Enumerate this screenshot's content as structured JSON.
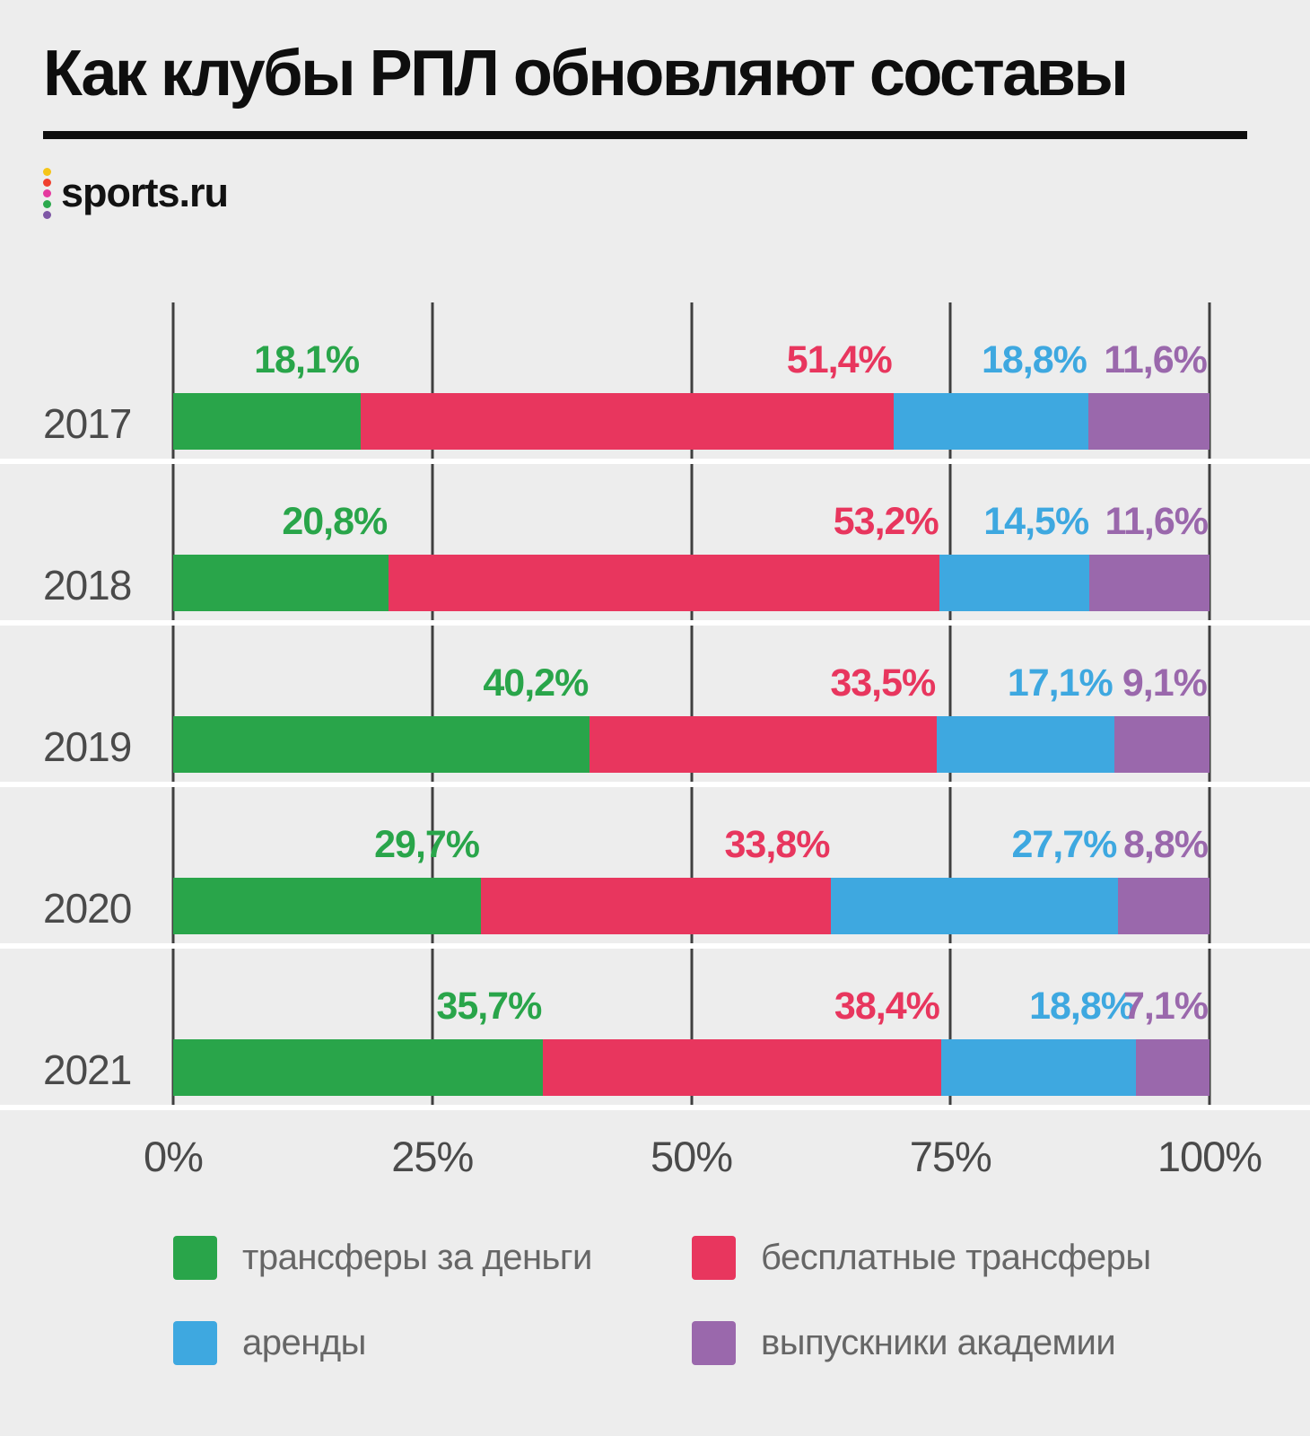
{
  "header": {
    "title": "Как клубы РПЛ обновляют составы",
    "logo_text": "sports.ru"
  },
  "colors": {
    "background": "#EDEDED",
    "grid_line": "#3F3F3F",
    "separator": "#FFFFFF",
    "axis_text": "#4A4A4A",
    "legend_text": "#666666",
    "logo_dots": [
      "#F5C518",
      "#F0402F",
      "#E5399F",
      "#2BA84C",
      "#7E57A5"
    ]
  },
  "chart_data": {
    "type": "bar",
    "orientation": "horizontal",
    "stacked": true,
    "title": "Как клубы РПЛ обновляют составы",
    "categories": [
      "2017",
      "2018",
      "2019",
      "2020",
      "2021"
    ],
    "series": [
      {
        "name": "трансферы за деньги",
        "color": "#29A54A",
        "values": [
          18.1,
          20.8,
          40.2,
          29.7,
          35.7
        ],
        "labels": [
          "18,1%",
          "20,8%",
          "40,2%",
          "29,7%",
          "35,7%"
        ]
      },
      {
        "name": "бесплатные трансферы",
        "color": "#E8365E",
        "values": [
          51.4,
          53.2,
          33.5,
          33.8,
          38.4
        ],
        "labels": [
          "51,4%",
          "53,2%",
          "33,5%",
          "33,8%",
          "38,4%"
        ]
      },
      {
        "name": "аренды",
        "color": "#3EA8E0",
        "values": [
          18.8,
          14.5,
          17.1,
          27.7,
          18.8
        ],
        "labels": [
          "18,8%",
          "14,5%",
          "17,1%",
          "27,7%",
          "18,8%"
        ]
      },
      {
        "name": "выпускники академии",
        "color": "#9A68AC",
        "values": [
          11.6,
          11.6,
          9.1,
          8.8,
          7.1
        ],
        "labels": [
          "11,6%",
          "11,6%",
          "9,1%",
          "8,8%",
          "7,1%"
        ]
      }
    ],
    "x_ticks": [
      {
        "label": "0%",
        "pos": 0
      },
      {
        "label": "25%",
        "pos": 25
      },
      {
        "label": "50%",
        "pos": 50
      },
      {
        "label": "75%",
        "pos": 75
      },
      {
        "label": "100%",
        "pos": 100
      }
    ],
    "xlim": [
      0,
      100
    ],
    "grid": "vertical",
    "legend_position": "bottom"
  }
}
